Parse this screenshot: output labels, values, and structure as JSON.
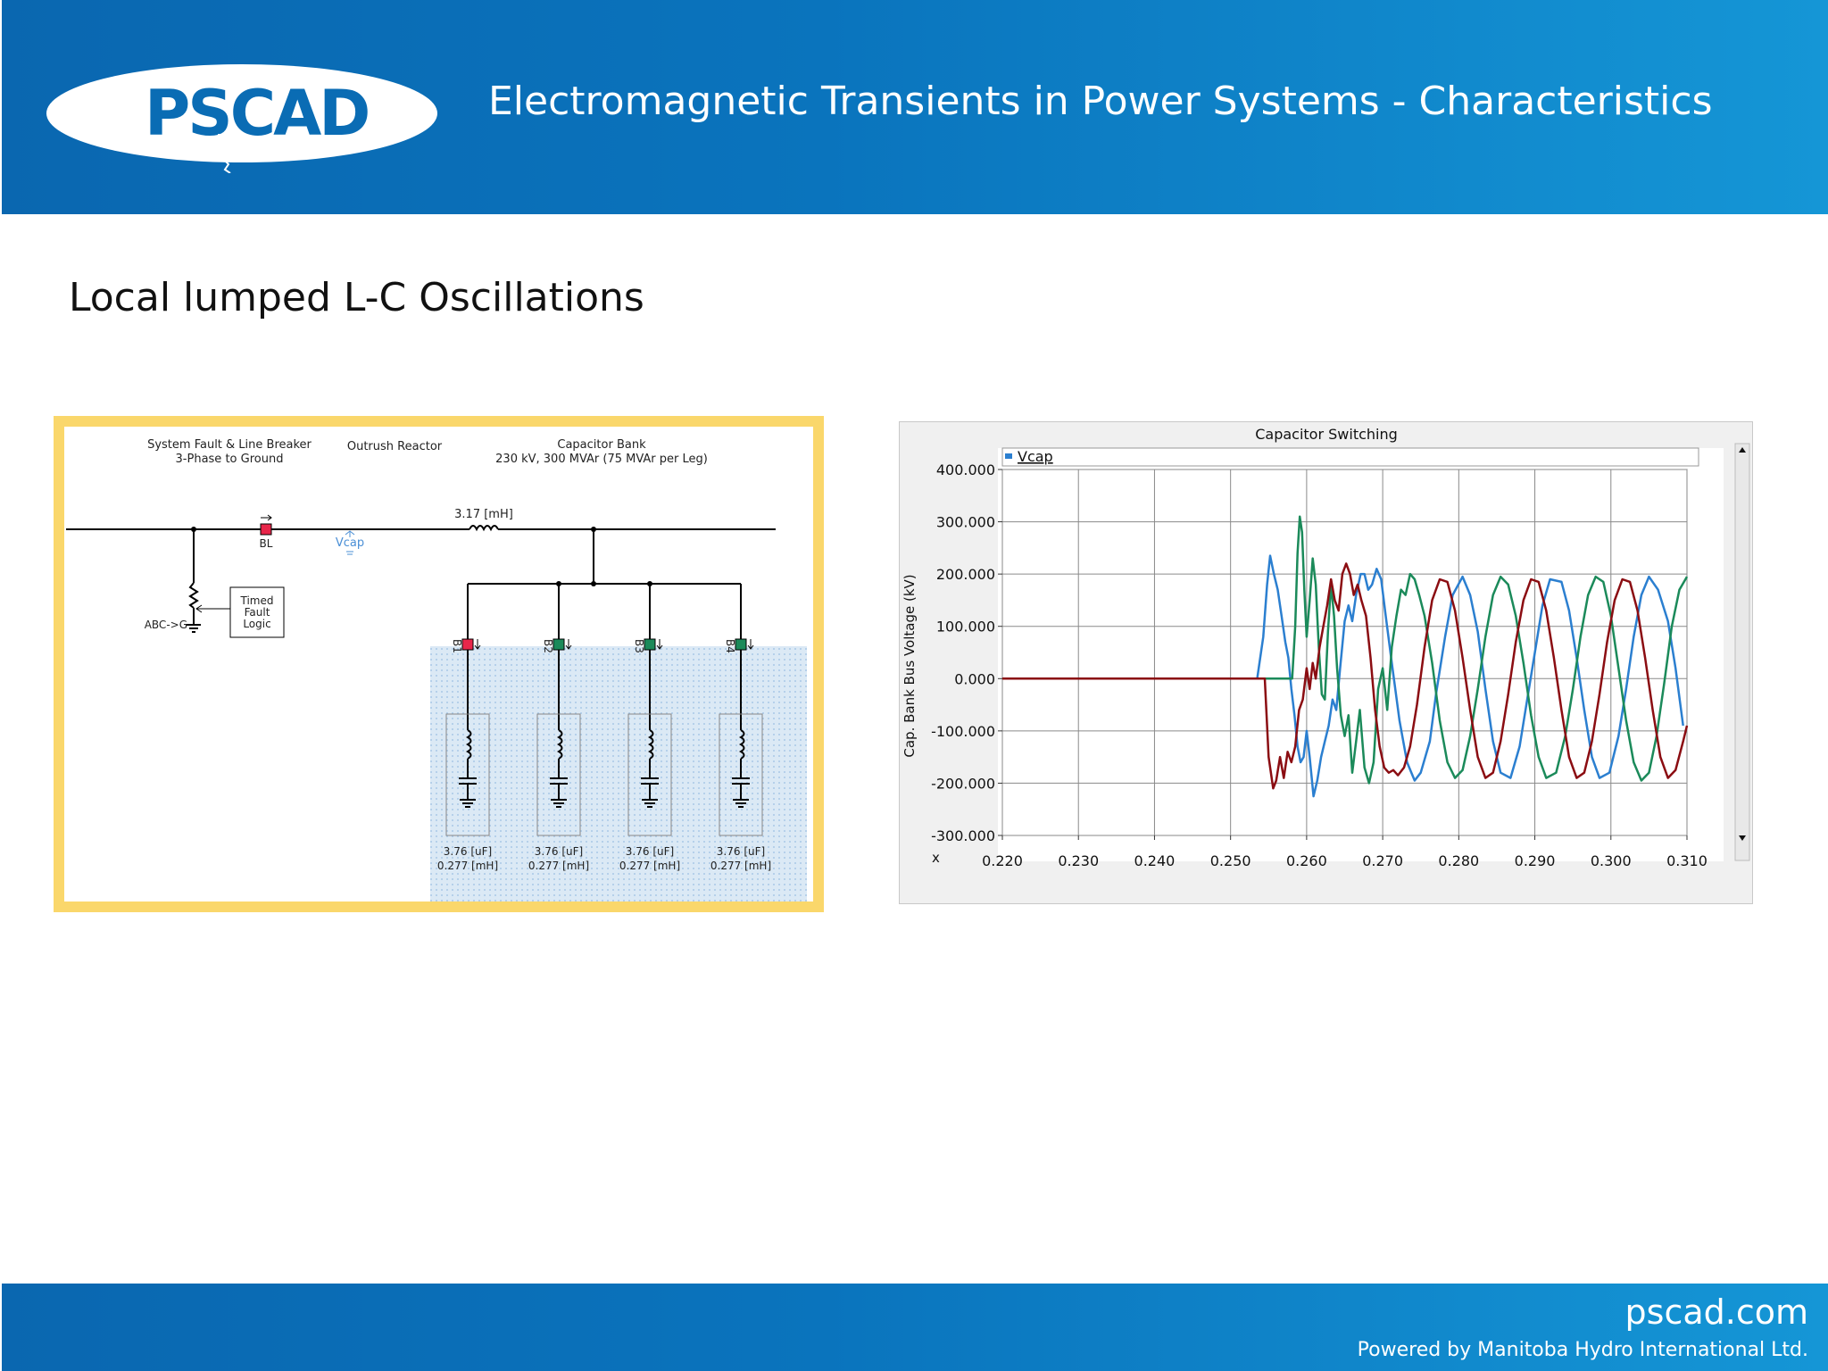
{
  "header": {
    "logo_text": "PSCAD",
    "title": "Electromagnetic Transients in Power Systems - Characteristics"
  },
  "slide": {
    "title": "Local lumped L-C Oscillations"
  },
  "schematic": {
    "label_fault_line1": "System Fault & Line Breaker",
    "label_fault_line2": "3-Phase to Ground",
    "label_reactor": "Outrush Reactor",
    "label_capbank_line1": "Capacitor Bank",
    "label_capbank_line2": "230 kV, 300 MVAr (75 MVAr per Leg)",
    "reactor_value": "3.17 [mH]",
    "breaker_label": "BL",
    "meter_label": "Vcap",
    "fault_label": "ABC->G",
    "logic_line1": "Timed",
    "logic_line2": "Fault",
    "logic_line3": "Logic",
    "branches": [
      {
        "breaker": "B1",
        "cap": "3.76 [uF]",
        "ind": "0.277 [mH]",
        "color": "#e8264a"
      },
      {
        "breaker": "B2",
        "cap": "3.76 [uF]",
        "ind": "0.277 [mH]",
        "color": "#1b8a5a"
      },
      {
        "breaker": "B3",
        "cap": "3.76 [uF]",
        "ind": "0.277 [mH]",
        "color": "#1b8a5a"
      },
      {
        "breaker": "B4",
        "cap": "3.76 [uF]",
        "ind": "0.277 [mH]",
        "color": "#1b8a5a"
      }
    ]
  },
  "chart_data": {
    "type": "line",
    "title": "Capacitor Switching",
    "legend": [
      "Vcap"
    ],
    "legend_placement": "top-left",
    "ylabel": "Cap. Bank Bus Voltage (kV)",
    "xlabel": "x",
    "xlim": [
      0.22,
      0.31
    ],
    "ylim": [
      -300,
      400
    ],
    "grid": true,
    "x_ticks": [
      "0.220",
      "0.230",
      "0.240",
      "0.250",
      "0.260",
      "0.270",
      "0.280",
      "0.290",
      "0.300",
      "0.310"
    ],
    "y_ticks": [
      "400.000",
      "300.000",
      "200.000",
      "100.000",
      "0.000",
      "-100.000",
      "-200.000",
      "-300.000"
    ],
    "series": [
      {
        "color": "#2b7fd0",
        "points": [
          [
            0.22,
            0
          ],
          [
            0.2535,
            0
          ],
          [
            0.2543,
            80
          ],
          [
            0.2548,
            180
          ],
          [
            0.2552,
            235
          ],
          [
            0.2557,
            200
          ],
          [
            0.2562,
            170
          ],
          [
            0.2567,
            120
          ],
          [
            0.2572,
            70
          ],
          [
            0.2576,
            40
          ],
          [
            0.258,
            -20
          ],
          [
            0.2584,
            -70
          ],
          [
            0.2588,
            -130
          ],
          [
            0.2592,
            -160
          ],
          [
            0.2596,
            -150
          ],
          [
            0.26,
            -100
          ],
          [
            0.2604,
            -150
          ],
          [
            0.2609,
            -225
          ],
          [
            0.2614,
            -195
          ],
          [
            0.2619,
            -150
          ],
          [
            0.2624,
            -120
          ],
          [
            0.2629,
            -90
          ],
          [
            0.2634,
            -40
          ],
          [
            0.2639,
            -60
          ],
          [
            0.2644,
            20
          ],
          [
            0.265,
            110
          ],
          [
            0.2655,
            140
          ],
          [
            0.266,
            110
          ],
          [
            0.2665,
            160
          ],
          [
            0.2671,
            200
          ],
          [
            0.2676,
            200
          ],
          [
            0.2681,
            170
          ],
          [
            0.2686,
            180
          ],
          [
            0.2692,
            210
          ],
          [
            0.2698,
            190
          ],
          [
            0.2704,
            120
          ],
          [
            0.2712,
            30
          ],
          [
            0.2722,
            -80
          ],
          [
            0.2732,
            -160
          ],
          [
            0.2742,
            -195
          ],
          [
            0.275,
            -180
          ],
          [
            0.2762,
            -120
          ],
          [
            0.277,
            -30
          ],
          [
            0.2782,
            80
          ],
          [
            0.2792,
            160
          ],
          [
            0.2805,
            195
          ],
          [
            0.2815,
            160
          ],
          [
            0.2825,
            90
          ],
          [
            0.2835,
            -20
          ],
          [
            0.2845,
            -120
          ],
          [
            0.2855,
            -180
          ],
          [
            0.2868,
            -190
          ],
          [
            0.288,
            -130
          ],
          [
            0.289,
            -40
          ],
          [
            0.29,
            50
          ],
          [
            0.291,
            140
          ],
          [
            0.292,
            190
          ],
          [
            0.2935,
            185
          ],
          [
            0.2945,
            130
          ],
          [
            0.2955,
            40
          ],
          [
            0.2965,
            -60
          ],
          [
            0.2975,
            -150
          ],
          [
            0.2985,
            -190
          ],
          [
            0.2998,
            -180
          ],
          [
            0.301,
            -110
          ],
          [
            0.302,
            -20
          ],
          [
            0.303,
            80
          ],
          [
            0.304,
            160
          ],
          [
            0.305,
            195
          ],
          [
            0.3062,
            170
          ],
          [
            0.3075,
            110
          ],
          [
            0.3085,
            20
          ],
          [
            0.3095,
            -90
          ]
        ]
      },
      {
        "color": "#1b8a5a",
        "points": [
          [
            0.22,
            0
          ],
          [
            0.254,
            0
          ],
          [
            0.2581,
            0
          ],
          [
            0.2585,
            100
          ],
          [
            0.2588,
            240
          ],
          [
            0.2591,
            310
          ],
          [
            0.2594,
            280
          ],
          [
            0.2597,
            170
          ],
          [
            0.26,
            80
          ],
          [
            0.2604,
            150
          ],
          [
            0.2608,
            230
          ],
          [
            0.2612,
            180
          ],
          [
            0.2616,
            60
          ],
          [
            0.262,
            -30
          ],
          [
            0.2624,
            -40
          ],
          [
            0.2628,
            90
          ],
          [
            0.2632,
            180
          ],
          [
            0.2636,
            120
          ],
          [
            0.264,
            20
          ],
          [
            0.2645,
            -70
          ],
          [
            0.265,
            -110
          ],
          [
            0.2655,
            -70
          ],
          [
            0.266,
            -180
          ],
          [
            0.2665,
            -120
          ],
          [
            0.267,
            -60
          ],
          [
            0.2676,
            -170
          ],
          [
            0.2682,
            -200
          ],
          [
            0.2688,
            -160
          ],
          [
            0.2694,
            -20
          ],
          [
            0.27,
            20
          ],
          [
            0.2706,
            -60
          ],
          [
            0.2712,
            60
          ],
          [
            0.2718,
            120
          ],
          [
            0.2724,
            170
          ],
          [
            0.273,
            160
          ],
          [
            0.2736,
            200
          ],
          [
            0.2742,
            190
          ],
          [
            0.2748,
            160
          ],
          [
            0.2755,
            120
          ],
          [
            0.2765,
            30
          ],
          [
            0.2775,
            -80
          ],
          [
            0.2785,
            -160
          ],
          [
            0.2795,
            -190
          ],
          [
            0.2805,
            -175
          ],
          [
            0.2815,
            -110
          ],
          [
            0.2825,
            -20
          ],
          [
            0.2835,
            80
          ],
          [
            0.2845,
            160
          ],
          [
            0.2855,
            195
          ],
          [
            0.2865,
            180
          ],
          [
            0.2875,
            120
          ],
          [
            0.2885,
            30
          ],
          [
            0.2895,
            -70
          ],
          [
            0.2905,
            -150
          ],
          [
            0.2915,
            -190
          ],
          [
            0.2928,
            -180
          ],
          [
            0.294,
            -110
          ],
          [
            0.295,
            -20
          ],
          [
            0.296,
            80
          ],
          [
            0.297,
            160
          ],
          [
            0.298,
            195
          ],
          [
            0.299,
            185
          ],
          [
            0.3,
            120
          ],
          [
            0.301,
            20
          ],
          [
            0.302,
            -80
          ],
          [
            0.303,
            -160
          ],
          [
            0.304,
            -195
          ],
          [
            0.305,
            -180
          ],
          [
            0.306,
            -110
          ],
          [
            0.307,
            -10
          ],
          [
            0.308,
            100
          ],
          [
            0.309,
            170
          ],
          [
            0.31,
            195
          ]
        ]
      },
      {
        "color": "#8b0d12",
        "points": [
          [
            0.22,
            0
          ],
          [
            0.2545,
            0
          ],
          [
            0.255,
            -150
          ],
          [
            0.2556,
            -210
          ],
          [
            0.256,
            -195
          ],
          [
            0.2565,
            -150
          ],
          [
            0.257,
            -190
          ],
          [
            0.2575,
            -140
          ],
          [
            0.258,
            -160
          ],
          [
            0.2585,
            -130
          ],
          [
            0.259,
            -60
          ],
          [
            0.2595,
            -40
          ],
          [
            0.26,
            20
          ],
          [
            0.2604,
            -20
          ],
          [
            0.2608,
            30
          ],
          [
            0.2612,
            0
          ],
          [
            0.2617,
            60
          ],
          [
            0.2622,
            100
          ],
          [
            0.2627,
            140
          ],
          [
            0.2632,
            190
          ],
          [
            0.2637,
            150
          ],
          [
            0.2642,
            130
          ],
          [
            0.2647,
            200
          ],
          [
            0.2652,
            220
          ],
          [
            0.2657,
            200
          ],
          [
            0.2662,
            160
          ],
          [
            0.2667,
            180
          ],
          [
            0.2672,
            150
          ],
          [
            0.2678,
            120
          ],
          [
            0.2684,
            40
          ],
          [
            0.269,
            -60
          ],
          [
            0.2696,
            -130
          ],
          [
            0.2702,
            -170
          ],
          [
            0.2708,
            -180
          ],
          [
            0.2714,
            -175
          ],
          [
            0.272,
            -185
          ],
          [
            0.2728,
            -170
          ],
          [
            0.2736,
            -130
          ],
          [
            0.2745,
            -50
          ],
          [
            0.2755,
            60
          ],
          [
            0.2765,
            150
          ],
          [
            0.2775,
            190
          ],
          [
            0.2785,
            185
          ],
          [
            0.2795,
            130
          ],
          [
            0.2805,
            40
          ],
          [
            0.2815,
            -60
          ],
          [
            0.2825,
            -150
          ],
          [
            0.2835,
            -190
          ],
          [
            0.2845,
            -180
          ],
          [
            0.2855,
            -120
          ],
          [
            0.2865,
            -30
          ],
          [
            0.2875,
            70
          ],
          [
            0.2885,
            150
          ],
          [
            0.2895,
            190
          ],
          [
            0.2905,
            185
          ],
          [
            0.2915,
            130
          ],
          [
            0.2925,
            40
          ],
          [
            0.2935,
            -60
          ],
          [
            0.2945,
            -150
          ],
          [
            0.2955,
            -190
          ],
          [
            0.2965,
            -180
          ],
          [
            0.2975,
            -120
          ],
          [
            0.2985,
            -30
          ],
          [
            0.2995,
            70
          ],
          [
            0.3005,
            150
          ],
          [
            0.3015,
            190
          ],
          [
            0.3025,
            185
          ],
          [
            0.3035,
            130
          ],
          [
            0.3045,
            40
          ],
          [
            0.3055,
            -60
          ],
          [
            0.3065,
            -150
          ],
          [
            0.3075,
            -190
          ],
          [
            0.3085,
            -175
          ],
          [
            0.3095,
            -120
          ],
          [
            0.31,
            -90
          ]
        ]
      }
    ]
  },
  "footer": {
    "url": "pscad.com",
    "powered": "Powered by Manitoba Hydro International Ltd."
  }
}
